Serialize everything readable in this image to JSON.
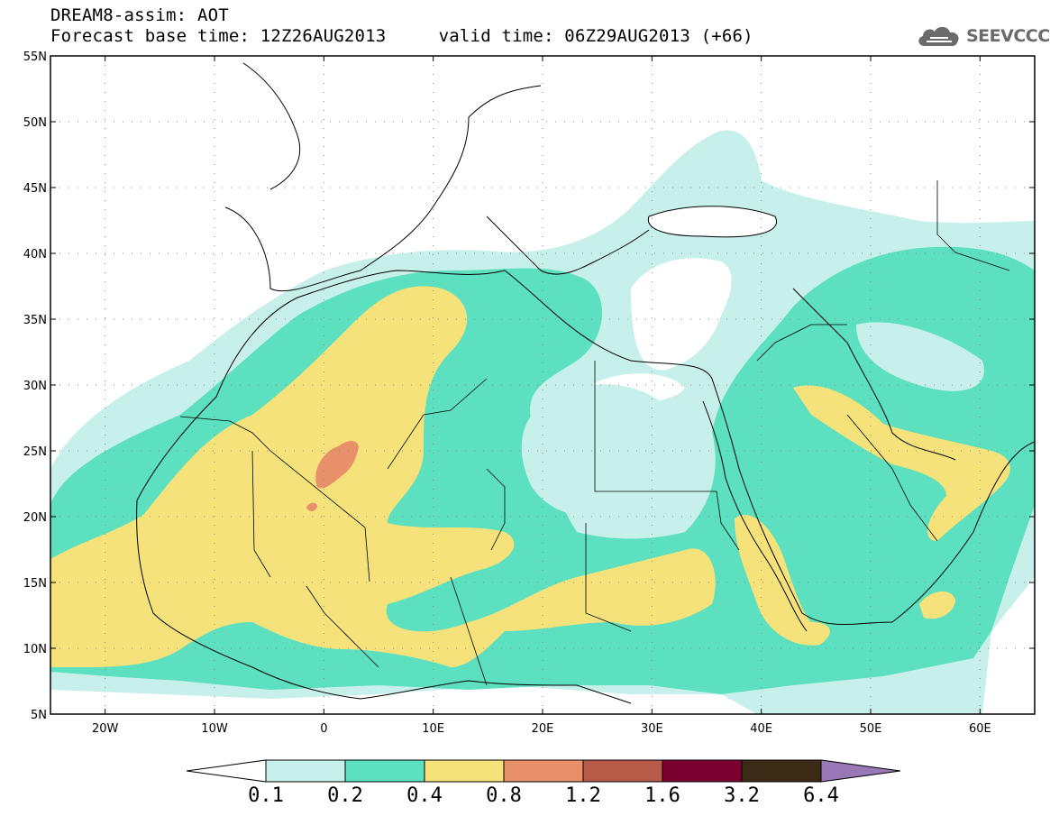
{
  "title": {
    "line1": "DREAM8-assim: AOT",
    "line2": "Forecast base time: 12Z26AUG2013     valid time: 06Z29AUG2013 (+66)"
  },
  "logo": {
    "text": "SEEVCCC",
    "icon": "cloud-icon"
  },
  "map": {
    "lat_labels": [
      "55N",
      "50N",
      "45N",
      "40N",
      "35N",
      "30N",
      "25N",
      "20N",
      "15N",
      "10N",
      "5N"
    ],
    "lon_labels": [
      "20W",
      "10W",
      "0",
      "10E",
      "20E",
      "30E",
      "40E",
      "50E",
      "60E"
    ],
    "lat_range": [
      5,
      55
    ],
    "lon_range": [
      -25,
      65
    ],
    "grid": "dotted"
  },
  "colorbar": {
    "levels": [
      "0.1",
      "0.2",
      "0.4",
      "0.8",
      "1.2",
      "1.6",
      "3.2",
      "6.4"
    ],
    "colors": [
      "#c8f0eb",
      "#5ce0bf",
      "#f5e27a",
      "#e8906a",
      "#b85a48",
      "#7a0030",
      "#3b2a16",
      "#9a78b8"
    ],
    "under_color": "#ffffff"
  },
  "colors": {
    "aot_01_02": "#c8f0eb",
    "aot_02_04": "#5ce0bf",
    "aot_04_08": "#f5e27a",
    "aot_08_12": "#e8906a"
  }
}
